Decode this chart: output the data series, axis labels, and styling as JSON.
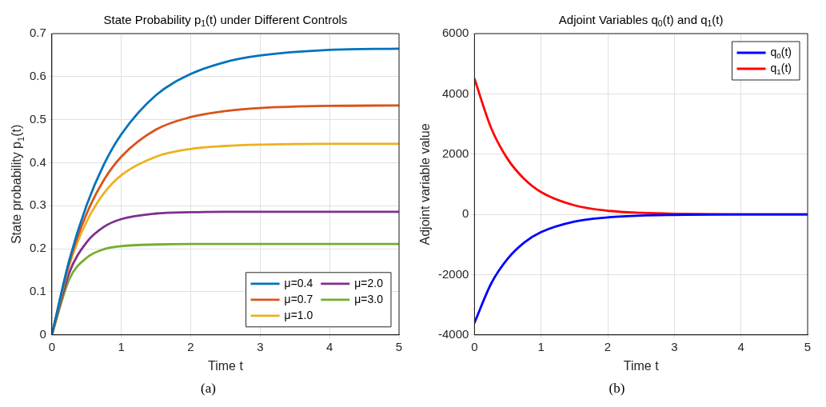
{
  "chart_data": [
    {
      "type": "line",
      "title": "State Probability p$_{1}$(t) under Different Controls",
      "xlabel": "Time t",
      "ylabel": "State probability p$_{1}$(t)",
      "x": [
        0,
        0.25,
        0.5,
        0.75,
        1,
        1.5,
        2,
        2.5,
        3,
        4,
        5
      ],
      "series": [
        {
          "name": "μ=0.4",
          "color": "#0072bd",
          "values": [
            0,
            0.173,
            0.301,
            0.396,
            0.466,
            0.557,
            0.606,
            0.634,
            0.649,
            0.662,
            0.665
          ]
        },
        {
          "name": "μ=0.7",
          "color": "#d95319",
          "values": [
            0,
            0.167,
            0.281,
            0.36,
            0.414,
            0.477,
            0.506,
            0.52,
            0.527,
            0.532,
            0.533
          ]
        },
        {
          "name": "μ=1.0",
          "color": "#edb120",
          "values": [
            0,
            0.161,
            0.263,
            0.329,
            0.371,
            0.414,
            0.432,
            0.439,
            0.442,
            0.444,
            0.444
          ]
        },
        {
          "name": "μ=2.0",
          "color": "#7e2f8e",
          "values": [
            0,
            0.144,
            0.215,
            0.251,
            0.269,
            0.282,
            0.285,
            0.286,
            0.286,
            0.286,
            0.286
          ]
        },
        {
          "name": "μ=3.0",
          "color": "#77ac30",
          "values": [
            0,
            0.129,
            0.179,
            0.199,
            0.206,
            0.21,
            0.211,
            0.211,
            0.211,
            0.211,
            0.211
          ]
        }
      ],
      "xlim": [
        0,
        5
      ],
      "xticks": [
        0,
        1,
        2,
        3,
        4,
        5
      ],
      "ylim": [
        0,
        0.7
      ],
      "yticks": [
        0,
        0.1,
        0.2,
        0.3,
        0.4,
        0.5,
        0.6,
        0.7
      ],
      "grid": true,
      "legend": "bottom right",
      "marker": "none",
      "line_style": "solid",
      "annotations": [
        "(a)"
      ]
    },
    {
      "type": "line",
      "title": "Adjoint Variables q$_{0}$(t) and q$_{1}$(t)",
      "xlabel": "Time t",
      "ylabel": "Adjoint variable value",
      "x": [
        0,
        0.25,
        0.5,
        0.75,
        1,
        1.5,
        2,
        2.5,
        3,
        4,
        5
      ],
      "series": [
        {
          "name": "q$_{0}$(t)",
          "color": "#0000ff",
          "values": [
            -3600,
            -2300,
            -1470,
            -930,
            -590,
            -240,
            -100,
            -40,
            -20,
            0,
            0
          ]
        },
        {
          "name": "q$_{1}$(t)",
          "color": "#ff0000",
          "values": [
            4500,
            2870,
            1830,
            1170,
            740,
            300,
            120,
            50,
            20,
            0,
            0
          ]
        }
      ],
      "xlim": [
        0,
        5
      ],
      "xticks": [
        0,
        1,
        2,
        3,
        4,
        5
      ],
      "ylim": [
        -4000,
        6000
      ],
      "yticks": [
        -4000,
        -2000,
        0,
        2000,
        4000,
        6000
      ],
      "grid": true,
      "legend": "top right",
      "marker": "none",
      "line_style": "solid",
      "annotations": [
        "(b)"
      ]
    }
  ]
}
